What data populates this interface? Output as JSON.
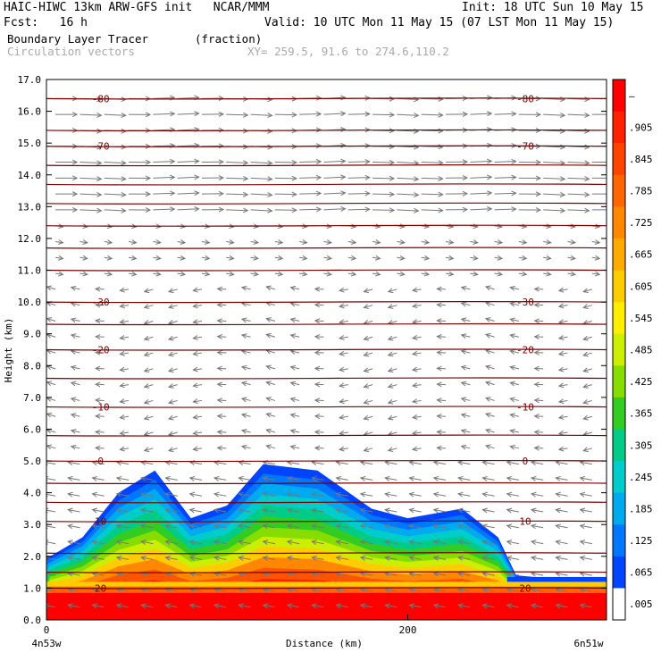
{
  "header": {
    "line1_left": "HAIC-HIWC 13km ARW-GFS init   NCAR/MMM",
    "line1_right": "Init: 18 UTC Sun 10 May 15",
    "line2_left": "Fcst:   16 h",
    "line2_right": "Valid: 10 UTC Mon 11 May 15 (07 LST Mon 11 May 15)",
    "field_name": "Boundary Layer Tracer",
    "field_units": "(fraction)",
    "vector_label": "Circulation vectors",
    "xy_label": "XY= 259.5, 91.6 to 274.6,110.2"
  },
  "axes": {
    "ylabel": "Height (km)",
    "xlabel": "Distance (km)",
    "x_left_label": "4n53w",
    "x_right_label": "6n51w"
  },
  "colorbar": {
    "labels": [
      "–",
      ".905",
      ".845",
      ".785",
      ".725",
      ".665",
      ".605",
      ".545",
      ".485",
      ".425",
      ".365",
      ".305",
      ".245",
      ".185",
      ".125",
      ".065",
      ".005"
    ],
    "colors": [
      "#ff0000",
      "#ff2200",
      "#ff4400",
      "#ff6600",
      "#ff8800",
      "#ffaa00",
      "#ffcc00",
      "#ffee00",
      "#ccee00",
      "#88dd00",
      "#33cc22",
      "#00cc88",
      "#00cccc",
      "#00aaee",
      "#0077ff",
      "#0044ff",
      "#ffffff"
    ]
  },
  "chart_data": {
    "type": "heatmap",
    "title": "Boundary Layer Tracer (fraction)",
    "xlabel": "Distance (km)",
    "ylabel": "Height (km)",
    "xlim": [
      0,
      310
    ],
    "ylim": [
      0,
      17
    ],
    "x_ticks": [
      0,
      200
    ],
    "y_ticks": [
      "0.0",
      "1.0",
      "2.0",
      "3.0",
      "4.0",
      "5.0",
      "6.0",
      "7.0",
      "8.0",
      "9.0",
      "10.0",
      "11.0",
      "12.0",
      "13.0",
      "14.0",
      "15.0",
      "16.0",
      "17.0"
    ],
    "temperature_contours": [
      {
        "value": "-80",
        "height_km": 16.4
      },
      {
        "value": "-70",
        "height_km": 14.9
      },
      {
        "value": "-30",
        "height_km": 10.0
      },
      {
        "value": "-20",
        "height_km": 8.5
      },
      {
        "value": "-10",
        "height_km": 6.7
      },
      {
        "value": "0",
        "height_km": 5.0
      },
      {
        "value": "10",
        "height_km": 3.1
      },
      {
        "value": "20",
        "height_km": 1.0
      }
    ],
    "tracer_top_profile_km": [
      [
        2,
        2.0
      ],
      [
        20,
        2.6
      ],
      [
        40,
        4.0
      ],
      [
        60,
        4.7
      ],
      [
        80,
        3.2
      ],
      [
        100,
        3.6
      ],
      [
        120,
        4.9
      ],
      [
        150,
        4.7
      ],
      [
        180,
        3.5
      ],
      [
        200,
        3.2
      ],
      [
        230,
        3.5
      ],
      [
        250,
        2.6
      ],
      [
        260,
        1.4
      ],
      [
        280,
        1.3
      ],
      [
        310,
        1.3
      ]
    ]
  }
}
